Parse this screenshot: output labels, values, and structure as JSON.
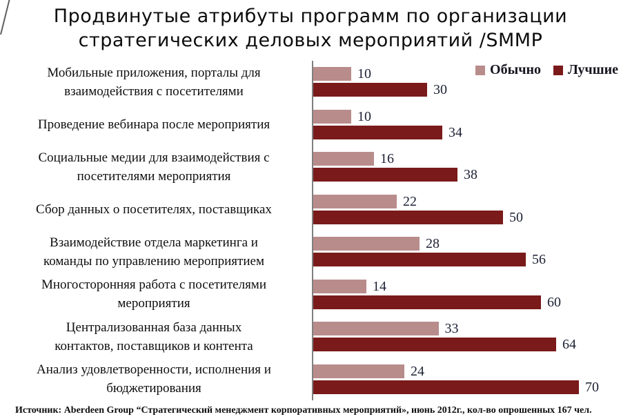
{
  "page": {
    "title_line1": "Продвинутые атрибуты программ по организации",
    "title_line2": "стратегических деловых мероприятий /SMMP",
    "footer": "Источник: Aberdeen Group “Стратегический менеджмент корпоративных мероприятий», июнь 2012г., кол-во опрошенных 167 чел."
  },
  "legend": {
    "items": [
      {
        "label": "Обычно",
        "color": "#b98c8c"
      },
      {
        "label": "Лучшие",
        "color": "#7a1a1a"
      }
    ]
  },
  "chart_data": {
    "type": "bar",
    "orientation": "horizontal",
    "title": "Продвинутые атрибуты программ по организации стратегических деловых мероприятий /SMMP",
    "categories": [
      "Мобильные приложения, порталы для\nвзаимодействия с посетителями",
      "Проведение вебинара после мероприятия",
      "Социальные медии для взаимодействия с\nпосетителями мероприятия",
      "Сбор данных о посетителях, поставщиках",
      "Взаимодействие отдела маркетинга и\nкоманды по управлению мероприятием",
      "Многосторонняя работа с посетителями\nмероприятия",
      "Централизованная база данных\nконтактов, поставщиков и контента",
      "Анализ удовлетворенности, исполнения и\nбюджетирования"
    ],
    "series": [
      {
        "name": "Обычно",
        "color": "#b98c8c",
        "values": [
          10,
          10,
          16,
          22,
          28,
          14,
          33,
          24
        ]
      },
      {
        "name": "Лучшие",
        "color": "#7a1a1a",
        "values": [
          30,
          34,
          38,
          50,
          56,
          60,
          64,
          70
        ]
      }
    ],
    "xlim": [
      0,
      80
    ],
    "value_labels": true,
    "legend_position": "top-right",
    "grid": false,
    "source_note": "Источник: Aberdeen Group “Стратегический менеджмент корпоративных мероприятий», июнь 2012г., кол-во опрошенных 167 чел."
  }
}
